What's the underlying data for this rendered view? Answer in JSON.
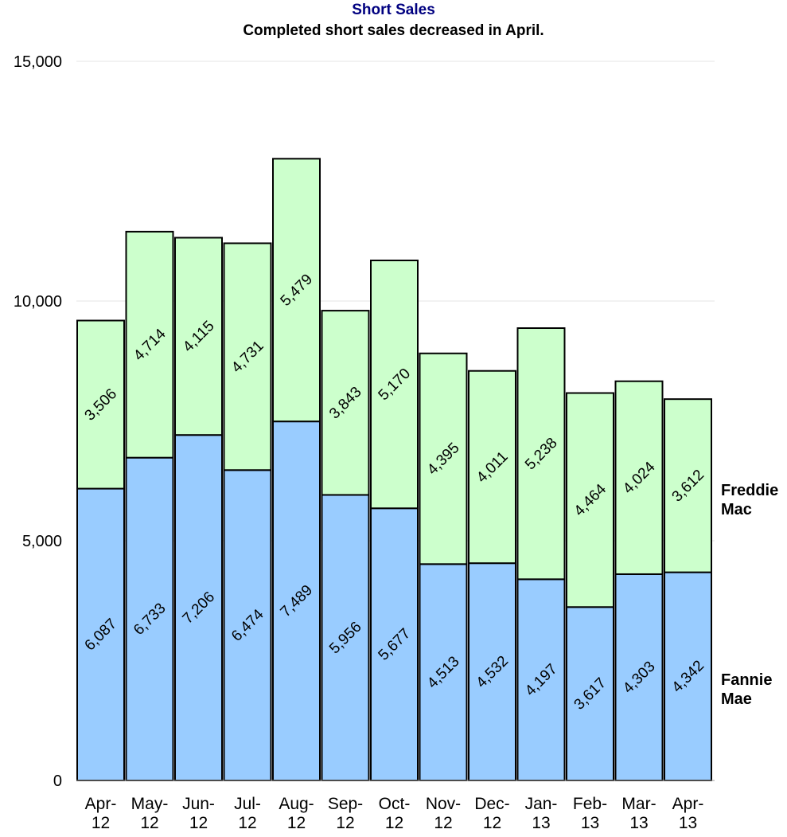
{
  "chart_data": {
    "type": "bar",
    "stacked": true,
    "title": "Short Sales",
    "subtitle": "Completed short sales decreased in April.",
    "xlabel": "",
    "ylabel": "",
    "ylim": [
      0,
      15000
    ],
    "yticks": [
      0,
      5000,
      10000,
      15000
    ],
    "ytick_labels": [
      "0",
      "5,000",
      "10,000",
      "15,000"
    ],
    "grid": true,
    "legend_placement": "right",
    "categories": [
      [
        "Apr-",
        "12"
      ],
      [
        "May-",
        "12"
      ],
      [
        "Jun-",
        "12"
      ],
      [
        "Jul-",
        "12"
      ],
      [
        "Aug-",
        "12"
      ],
      [
        "Sep-",
        "12"
      ],
      [
        "Oct-",
        "12"
      ],
      [
        "Nov-",
        "12"
      ],
      [
        "Dec-",
        "12"
      ],
      [
        "Jan-",
        "13"
      ],
      [
        "Feb-",
        "13"
      ],
      [
        "Mar-",
        "13"
      ],
      [
        "Apr-",
        "13"
      ]
    ],
    "series": [
      {
        "name": "Fannie Mae",
        "legend_lines": [
          "Fannie",
          "Mae"
        ],
        "color": "#99ccff",
        "values": [
          6087,
          6733,
          7206,
          6474,
          7489,
          5956,
          5677,
          4513,
          4532,
          4197,
          3617,
          4303,
          4342
        ],
        "labels": [
          "6,087",
          "6,733",
          "7,206",
          "6,474",
          "7,489",
          "5,956",
          "5,677",
          "4,513",
          "4,532",
          "4,197",
          "3,617",
          "4,303",
          "4,342"
        ]
      },
      {
        "name": "Freddie Mac",
        "legend_lines": [
          "Freddie",
          "Mac"
        ],
        "color": "#ccffcc",
        "values": [
          3506,
          4714,
          4115,
          4731,
          5479,
          3843,
          5170,
          4395,
          4011,
          5238,
          4464,
          4024,
          3612
        ],
        "labels": [
          "3,506",
          "4,714",
          "4,115",
          "4,731",
          "5,479",
          "3,843",
          "5,170",
          "4,395",
          "4,011",
          "5,238",
          "4,464",
          "4,024",
          "3,612"
        ]
      }
    ],
    "colors": {
      "title": "#000080",
      "subtitle": "#000000",
      "gridline": "#e6e6e6",
      "bar_outline": "#000000"
    }
  }
}
